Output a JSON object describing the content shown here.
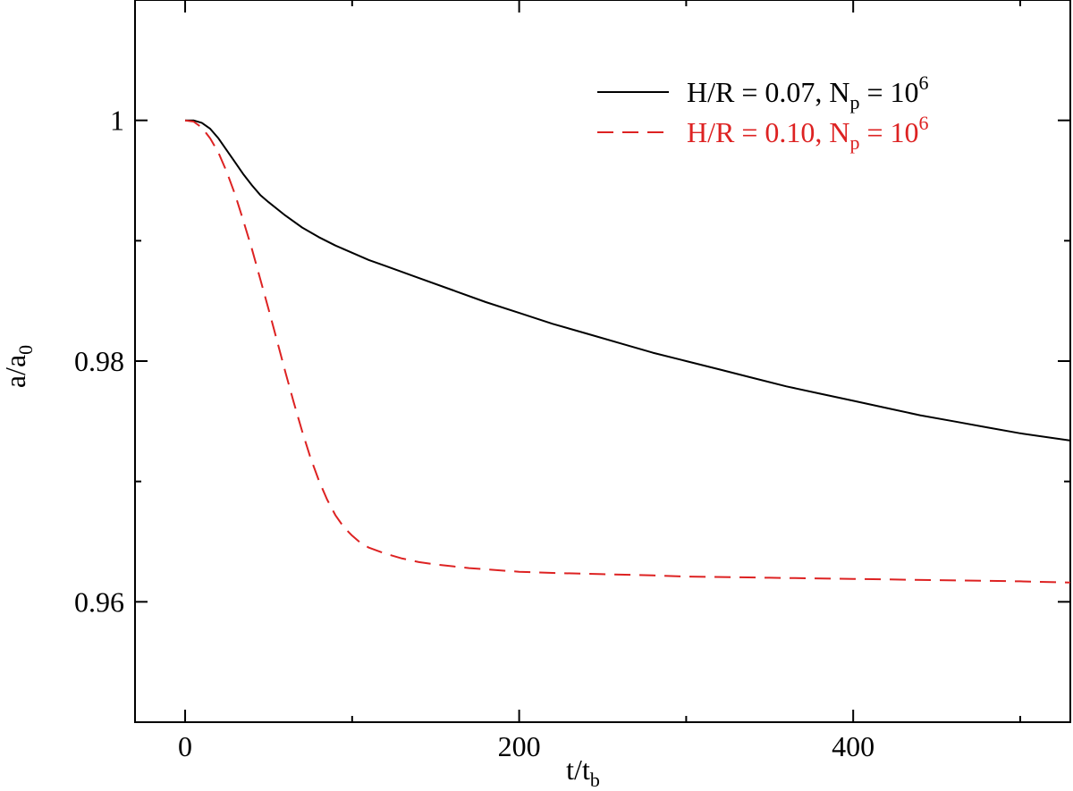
{
  "chart_data": {
    "type": "line",
    "title": "",
    "xlabel": "t/t",
    "xlabel_sub": "b",
    "ylabel": "a/a",
    "ylabel_sub": "0",
    "xlim": [
      -30,
      530
    ],
    "ylim": [
      0.95,
      1.01
    ],
    "xticks": [
      0,
      200,
      400
    ],
    "xtick_labels": [
      "0",
      "200",
      "400"
    ],
    "x_minor_ticks": [
      100,
      300,
      500
    ],
    "yticks": [
      0.96,
      0.98,
      1.0
    ],
    "ytick_labels": [
      "0.96",
      "0.98",
      "1"
    ],
    "y_minor_ticks": [
      0.97,
      0.99
    ],
    "grid": false,
    "legend_position": "top-right",
    "series": [
      {
        "name": "H/R = 0.07, N",
        "name_sub": "p",
        "name_tail": " = 10",
        "name_sup": "6",
        "color": "#000000",
        "dash": "solid",
        "x": [
          0,
          5,
          10,
          15,
          20,
          25,
          30,
          35,
          40,
          45,
          50,
          60,
          70,
          80,
          90,
          100,
          110,
          120,
          140,
          160,
          180,
          200,
          220,
          240,
          260,
          280,
          300,
          320,
          340,
          360,
          380,
          400,
          420,
          440,
          460,
          480,
          500,
          530
        ],
        "y": [
          1.0,
          1.0,
          0.9998,
          0.9993,
          0.9985,
          0.9975,
          0.9965,
          0.9955,
          0.9946,
          0.9938,
          0.9932,
          0.9921,
          0.9911,
          0.9903,
          0.9896,
          0.989,
          0.9884,
          0.9879,
          0.9869,
          0.9859,
          0.9849,
          0.984,
          0.9831,
          0.9823,
          0.9815,
          0.9807,
          0.98,
          0.9793,
          0.9786,
          0.9779,
          0.9773,
          0.9767,
          0.9761,
          0.9755,
          0.975,
          0.9745,
          0.974,
          0.9734
        ]
      },
      {
        "name": "H/R = 0.10, N",
        "name_sub": "p",
        "name_tail": " = 10",
        "name_sup": "6",
        "color": "#dd2222",
        "dash": "dashed",
        "x": [
          0,
          5,
          10,
          15,
          20,
          25,
          30,
          35,
          40,
          45,
          50,
          55,
          60,
          65,
          70,
          75,
          80,
          85,
          90,
          95,
          100,
          105,
          110,
          120,
          130,
          140,
          150,
          170,
          200,
          220,
          250,
          280,
          300,
          350,
          400,
          450,
          500,
          530
        ],
        "y": [
          1.0,
          0.9999,
          0.9994,
          0.9985,
          0.9973,
          0.9957,
          0.9938,
          0.9916,
          0.9893,
          0.9868,
          0.9843,
          0.9817,
          0.9791,
          0.9766,
          0.9742,
          0.972,
          0.9701,
          0.9685,
          0.9672,
          0.9662,
          0.9655,
          0.9649,
          0.9645,
          0.964,
          0.9636,
          0.9633,
          0.9631,
          0.9628,
          0.9625,
          0.9624,
          0.9623,
          0.9622,
          0.9621,
          0.962,
          0.9619,
          0.9618,
          0.9617,
          0.9616
        ]
      }
    ]
  }
}
